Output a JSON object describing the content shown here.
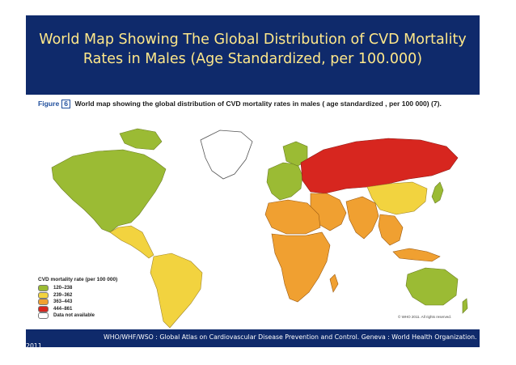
{
  "slide": {
    "title": "World Map Showing The Global Distribution of CVD Mortality Rates in Males (Age Standardized, per 100.000)",
    "header_color": "#0f2a6b",
    "title_color": "#ffe88a"
  },
  "figure": {
    "label_word": "Figure",
    "label_number": "6",
    "caption": "World map showing the global distribution of CVD mortality rates in males ( age standardized , per 100 000) (7).",
    "copyright": "© WHO 2011. All rights reserved."
  },
  "legend": {
    "title": "CVD mortality rate (per 100 000)",
    "items": [
      {
        "label": "120–238",
        "color": "#9bbb34"
      },
      {
        "label": "239–362",
        "color": "#f2d33f"
      },
      {
        "label": "363–443",
        "color": "#f0a031"
      },
      {
        "label": "444–861",
        "color": "#d7261f"
      },
      {
        "label": "Data not available",
        "color": "#ffffff"
      }
    ]
  },
  "map": {
    "water_color": "#ffffff",
    "regions": [
      {
        "name": "north-america",
        "class": "120–238"
      },
      {
        "name": "greenland",
        "class": "Data not available"
      },
      {
        "name": "central-america",
        "class": "239–362"
      },
      {
        "name": "south-america",
        "class": "239–362"
      },
      {
        "name": "western-europe",
        "class": "120–238"
      },
      {
        "name": "eastern-europe-russia",
        "class": "444–861"
      },
      {
        "name": "middle-east",
        "class": "363–443"
      },
      {
        "name": "north-africa",
        "class": "363–443"
      },
      {
        "name": "sub-saharan-africa",
        "class": "363–443"
      },
      {
        "name": "south-asia",
        "class": "363–443"
      },
      {
        "name": "china",
        "class": "239–362"
      },
      {
        "name": "japan",
        "class": "120–238"
      },
      {
        "name": "southeast-asia",
        "class": "363–443"
      },
      {
        "name": "australia",
        "class": "120–238"
      }
    ]
  },
  "footer": {
    "citation": "WHO/WHF/WSO : Global Atlas on Cardiovascular Disease Prevention and Control. Geneva : World Health Organization.",
    "year": "2011"
  }
}
